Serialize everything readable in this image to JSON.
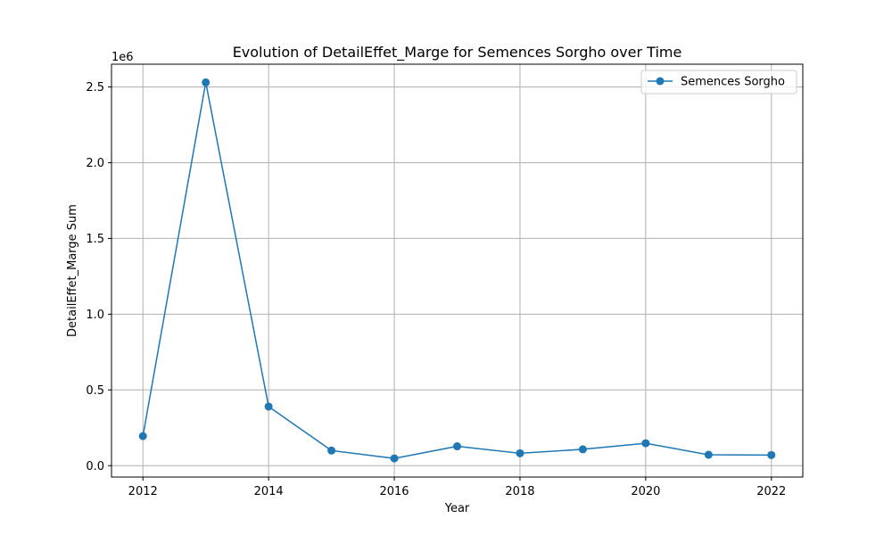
{
  "chart_data": {
    "type": "line",
    "title": "Evolution of DetailEffet_Marge for Semences Sorgho over Time",
    "xlabel": "Year",
    "ylabel": "DetailEffet_Marge Sum",
    "y_offset_label": "1e6",
    "x": [
      2012,
      2013,
      2014,
      2015,
      2016,
      2017,
      2018,
      2019,
      2020,
      2021,
      2022
    ],
    "series": [
      {
        "name": "Semences Sorgho",
        "color": "#1f77b4",
        "marker": "circle",
        "values": [
          195000,
          2530000,
          390000,
          100000,
          48000,
          128000,
          82000,
          108000,
          148000,
          72000,
          70000
        ]
      }
    ],
    "xlim": [
      2011.5,
      2022.5
    ],
    "ylim": [
      -75000,
      2650000
    ],
    "x_ticks": [
      2012,
      2014,
      2016,
      2018,
      2020,
      2022
    ],
    "y_ticks": [
      0,
      500000,
      1000000,
      1500000,
      2000000,
      2500000
    ],
    "y_tick_labels": [
      "0.0",
      "0.5",
      "1.0",
      "1.5",
      "2.0",
      "2.5"
    ],
    "grid": true,
    "legend_position": "top-right"
  }
}
